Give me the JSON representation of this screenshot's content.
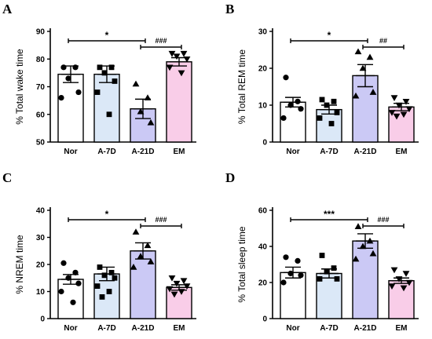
{
  "chart_data": [
    {
      "panel": "A",
      "type": "bar",
      "ylabel": "% Total wake time",
      "ylim": [
        50,
        90
      ],
      "yticks": [
        "50",
        "60",
        "70",
        "80",
        "90"
      ],
      "categories": [
        "Nor",
        "A-7D",
        "A-21D",
        "EM"
      ],
      "values": [
        74.5,
        74.5,
        62,
        79
      ],
      "errors": [
        3,
        3,
        3.5,
        1.5
      ],
      "points": [
        [
          77,
          77,
          73,
          68,
          66
        ],
        [
          77,
          77,
          75,
          72,
          68,
          60
        ],
        [
          71,
          66,
          61,
          57
        ],
        [
          82,
          82,
          81,
          80,
          77,
          75
        ]
      ],
      "markers": [
        "circle",
        "square",
        "triangle",
        "triangle-down"
      ],
      "significance": [
        {
          "from": 0,
          "to": 2,
          "label": "*"
        },
        {
          "from": 2,
          "to": 3,
          "label": "###"
        }
      ]
    },
    {
      "panel": "B",
      "type": "bar",
      "ylabel": "% Total REM time",
      "ylim": [
        0,
        30
      ],
      "yticks": [
        "0",
        "10",
        "20",
        "30"
      ],
      "categories": [
        "Nor",
        "A-7D",
        "A-21D",
        "EM"
      ],
      "values": [
        10.8,
        8.8,
        18,
        9.5
      ],
      "errors": [
        1.3,
        1.2,
        3,
        1
      ],
      "points": [
        [
          17.5,
          11,
          10,
          9,
          6.5
        ],
        [
          11.5,
          11,
          10,
          8,
          6.5,
          5
        ],
        [
          24.5,
          23,
          20,
          13.5,
          12.5
        ],
        [
          12,
          11,
          10,
          9,
          8,
          7.5,
          7
        ]
      ],
      "markers": [
        "circle",
        "square",
        "triangle",
        "triangle-down"
      ],
      "significance": [
        {
          "from": 0,
          "to": 2,
          "label": "*"
        },
        {
          "from": 2,
          "to": 3,
          "label": "##"
        }
      ]
    },
    {
      "panel": "C",
      "type": "bar",
      "ylabel": "% NREM time",
      "ylim": [
        0,
        40
      ],
      "yticks": [
        "0",
        "10",
        "20",
        "30",
        "40"
      ],
      "categories": [
        "Nor",
        "A-7D",
        "A-21D",
        "EM"
      ],
      "values": [
        14.5,
        16.5,
        25,
        11.5
      ],
      "errors": [
        1.8,
        2.5,
        3,
        1
      ],
      "points": [
        [
          20.5,
          17,
          15,
          13,
          10,
          6
        ],
        [
          19,
          17,
          16,
          15,
          12,
          10,
          8
        ],
        [
          32,
          27,
          23,
          21,
          19
        ],
        [
          15,
          14,
          13,
          12,
          11,
          10,
          9
        ]
      ],
      "markers": [
        "circle",
        "square",
        "triangle",
        "triangle-down"
      ],
      "significance": [
        {
          "from": 0,
          "to": 2,
          "label": "*"
        },
        {
          "from": 2,
          "to": 3,
          "label": "###"
        }
      ]
    },
    {
      "panel": "D",
      "type": "bar",
      "ylabel": "% Total sleep time",
      "ylim": [
        0,
        60
      ],
      "yticks": [
        "0",
        "20",
        "40",
        "60"
      ],
      "categories": [
        "Nor",
        "A-7D",
        "A-21D",
        "EM"
      ],
      "values": [
        25.5,
        25,
        43,
        21
      ],
      "errors": [
        3,
        2.5,
        4,
        1.5
      ],
      "points": [
        [
          34,
          32,
          25,
          24,
          20
        ],
        [
          35,
          28,
          26,
          22,
          22
        ],
        [
          51,
          43,
          40,
          36,
          33
        ],
        [
          27,
          25,
          22,
          20,
          18,
          17
        ]
      ],
      "markers": [
        "circle",
        "square",
        "triangle",
        "triangle-down"
      ],
      "significance": [
        {
          "from": 0,
          "to": 2,
          "label": "***"
        },
        {
          "from": 2,
          "to": 3,
          "label": "###"
        }
      ]
    }
  ],
  "bar_colors": [
    "#ffffff",
    "#dbe8f7",
    "#cbc9f5",
    "#f9cde8"
  ],
  "edge_color": "#000000"
}
